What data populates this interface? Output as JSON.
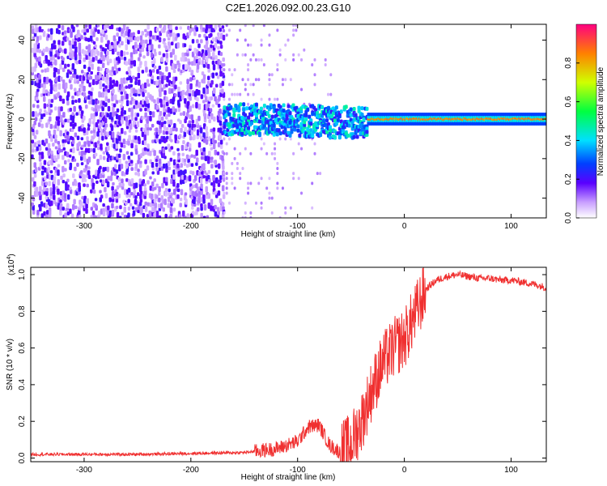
{
  "figure": {
    "title": "C2E1.2026.092.00.23.G10"
  },
  "chart_data": [
    {
      "id": "spectrogram",
      "type": "heatmap",
      "title": "C2E1.2026.092.00.23.G10",
      "xlabel": "Height of straight line (km)",
      "ylabel": "Frequency (Hz)",
      "xlim": [
        -350,
        133
      ],
      "ylim": [
        -50,
        48
      ],
      "xticks": [
        -300,
        -200,
        -100,
        0,
        100
      ],
      "xtick_labels": [
        "-300",
        "-200",
        "-100",
        "0",
        "100"
      ],
      "yticks": [
        -40,
        -20,
        0,
        20,
        40
      ],
      "ytick_labels": [
        "-40",
        "-20",
        "0",
        "20",
        "40"
      ],
      "colorbar": {
        "label": "Normalized spectral amplitude",
        "range": [
          0,
          1
        ],
        "ticks": [
          0.0,
          0.2,
          0.4,
          0.6,
          0.8
        ],
        "tick_labels": [
          "0.0",
          "0.2",
          "0.4",
          "0.6",
          "0.8"
        ]
      },
      "regions": [
        {
          "name": "noise",
          "x_range": [
            -350,
            -170
          ],
          "freq_range": [
            -50,
            48
          ],
          "amplitude": "low"
        },
        {
          "name": "transition",
          "x_range": [
            -170,
            -35
          ],
          "freq_center": 0,
          "freq_halfwidth": 8,
          "amplitude": "medium"
        },
        {
          "name": "signal",
          "x_range": [
            -35,
            133
          ],
          "freq_center": 0,
          "freq_halfwidth": 3,
          "amplitude": "high"
        }
      ]
    },
    {
      "id": "snr",
      "type": "line",
      "xlabel": "Height of straight line (km)",
      "ylabel": "SNR (10 * v/v)",
      "y_multiplier": "(x10",
      "y_multiplier_exp": "4",
      "y_multiplier_close": ")",
      "color": "#f03030",
      "xlim": [
        -350,
        133
      ],
      "ylim": [
        -0.02,
        1.04
      ],
      "xticks": [
        -300,
        -200,
        -100,
        0,
        100
      ],
      "xtick_labels": [
        "-300",
        "-200",
        "-100",
        "0",
        "100"
      ],
      "yticks": [
        0.0,
        0.2,
        0.4,
        0.6,
        0.8,
        1.0
      ],
      "ytick_labels": [
        "0.0",
        "0.2",
        "0.4",
        "0.6",
        "0.8",
        "1.0"
      ],
      "series": [
        {
          "name": "SNR",
          "x": [
            -350,
            -300,
            -250,
            -200,
            -150,
            -120,
            -100,
            -90,
            -80,
            -70,
            -60,
            -50,
            -40,
            -30,
            -20,
            -10,
            0,
            10,
            20,
            30,
            40,
            50,
            60,
            70,
            80,
            90,
            100,
            110,
            120,
            133
          ],
          "y": [
            0.02,
            0.02,
            0.02,
            0.025,
            0.03,
            0.05,
            0.09,
            0.17,
            0.18,
            0.07,
            0.03,
            0.08,
            0.2,
            0.38,
            0.52,
            0.6,
            0.65,
            0.78,
            0.92,
            0.97,
            0.99,
            1.0,
            0.99,
            0.98,
            0.98,
            0.97,
            0.97,
            0.96,
            0.95,
            0.93
          ]
        }
      ]
    }
  ]
}
